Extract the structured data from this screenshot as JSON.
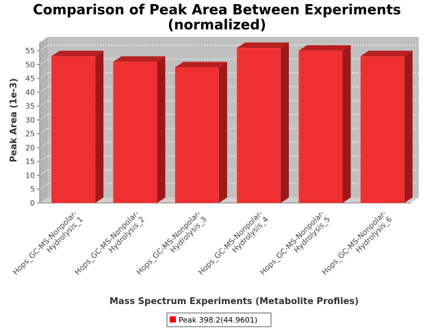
{
  "chart_data": {
    "type": "bar",
    "title_line1": "Comparison of Peak Area Between Experiments",
    "title_line2": "(normalized)",
    "xlabel": "Mass Spectrum Experiments (Metabolite Profiles)",
    "ylabel": "Peak Area (1e-3)",
    "categories": [
      [
        "Hops_GC-MS-Nonpolar-",
        "Hydrolysis_1"
      ],
      [
        "Hops_GC-MS-Nonpolar-",
        "Hydrolysis_2"
      ],
      [
        "Hops_GC-MS-Nonpolar-",
        "Hydrolysis_3"
      ],
      [
        "Hops_GC-MS-Nonpolar-",
        "Hydrolysis_4"
      ],
      [
        "Hops_GC-MS-Nonpolar-",
        "Hydrolysis_5"
      ],
      [
        "Hops_GC-MS-Nonpolar-",
        "Hydrolysis_6"
      ]
    ],
    "series": [
      {
        "name": "Peak 398.2(44.9601)",
        "values": [
          53,
          51,
          49,
          56,
          55,
          53
        ]
      }
    ],
    "yticks": [
      0,
      5,
      10,
      15,
      20,
      25,
      30,
      35,
      40,
      45,
      50,
      55
    ],
    "ylim": [
      0,
      58
    ],
    "grid": true,
    "legend_position": "bottom",
    "colors": {
      "bar_front": "#f03030",
      "bar_top": "#b82020",
      "bar_side": "#a01818",
      "plot_back": "#c0c0c0",
      "plot_floor": "#d0d0d0",
      "legend_marker": "#ff0000"
    }
  }
}
